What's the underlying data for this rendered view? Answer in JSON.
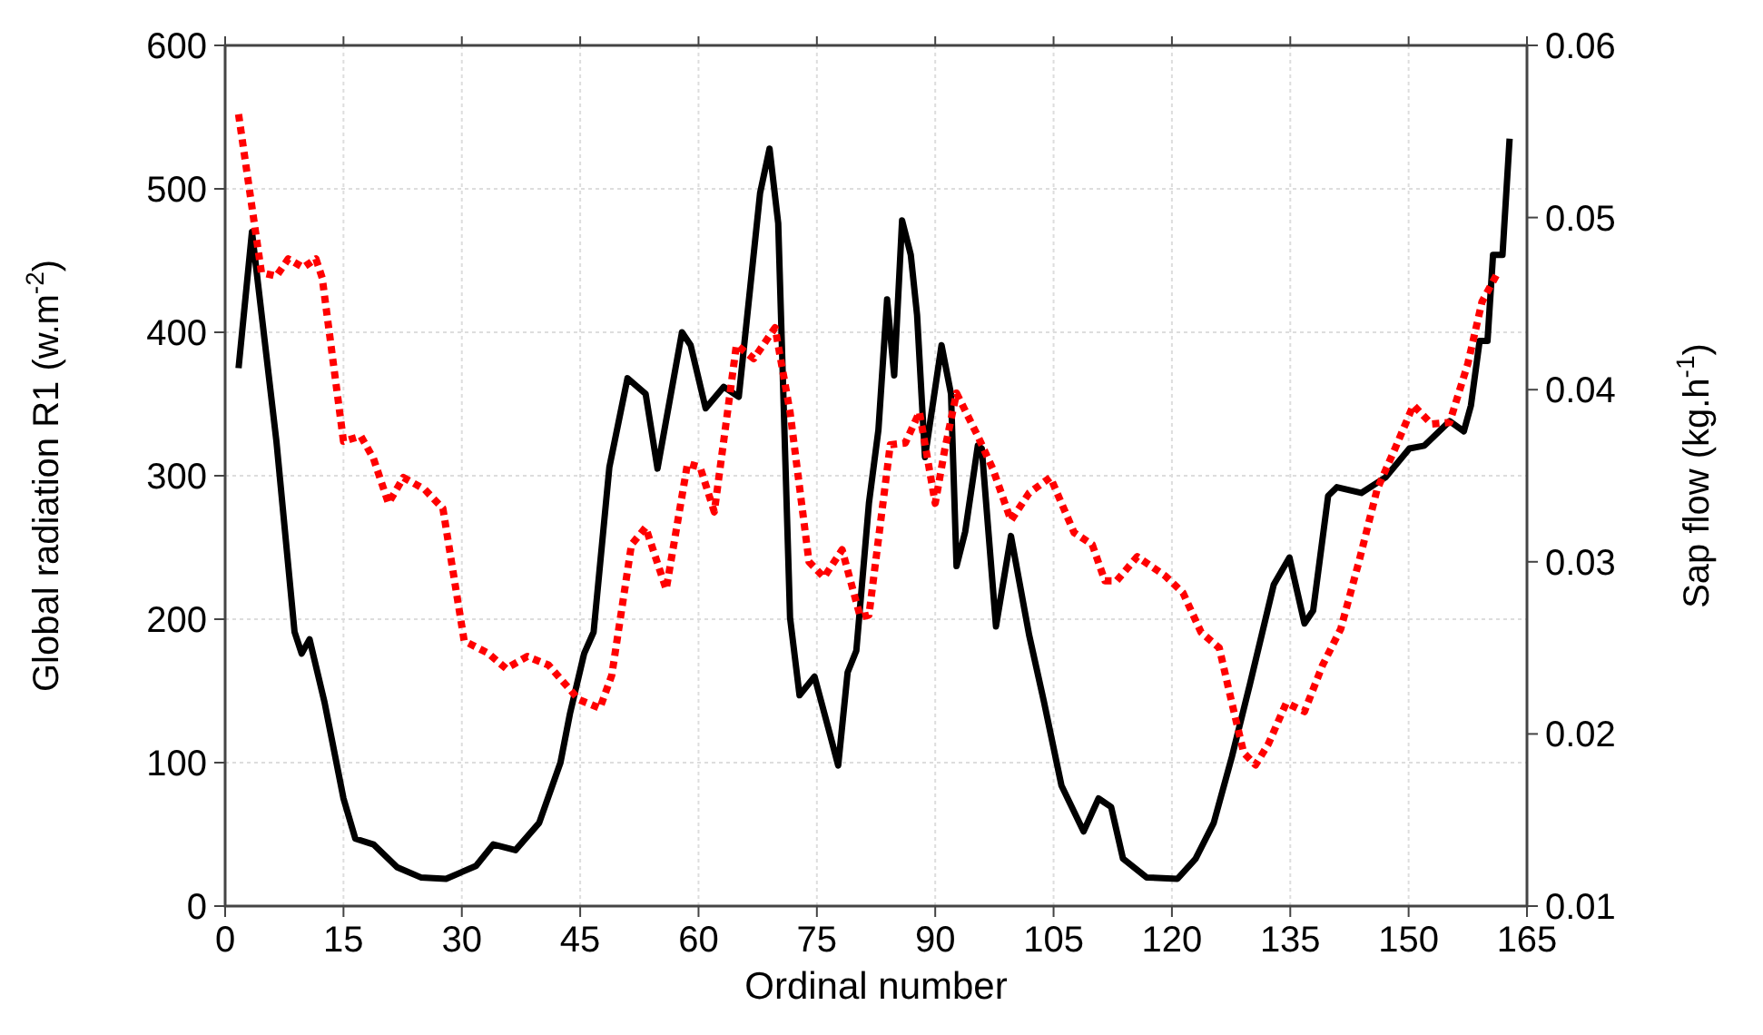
{
  "chart_data": {
    "type": "line",
    "xlabel": "Ordinal number",
    "ylabel": "Global radiation R1 (w.m$^{-2}$)",
    "y2label": "Sap flow (kg.h$^{-1}$)",
    "xlim": [
      0,
      165
    ],
    "xticks": [
      0,
      15,
      30,
      45,
      60,
      75,
      90,
      105,
      120,
      135,
      150,
      165
    ],
    "ylim": [
      0,
      600
    ],
    "yticks": [
      0,
      100,
      200,
      300,
      400,
      500,
      600
    ],
    "y2lim": [
      0.01,
      0.06
    ],
    "y2ticks": [
      0.01,
      0.02,
      0.03,
      0.04,
      0.05,
      0.06
    ],
    "grid": true,
    "series": [
      {
        "color": "#000000",
        "line_style": "solid",
        "x": [
          1.7,
          3.4,
          6.5,
          8.8,
          9.7,
          10.7,
          12.6,
          15,
          16.5,
          18.8,
          21.8,
          24.8,
          28,
          31.8,
          34,
          36.8,
          39.8,
          42.5,
          43.7,
          45.5,
          46.7,
          48.7,
          51,
          53.3,
          54.8,
          57.9,
          59,
          60.9,
          63.2,
          65.1,
          67.8,
          69,
          70.1,
          71.6,
          72.8,
          74.7,
          76.6,
          77.7,
          78.9,
          80,
          81.6,
          82.8,
          83.9,
          84.8,
          85.8,
          86.9,
          87.7,
          88.7,
          90.8,
          92,
          92.7,
          93.8,
          95.4,
          95.9,
          97.7,
          99.6,
          101.9,
          103.8,
          106,
          108.8,
          110.7,
          112.3,
          113.8,
          116.8,
          120.7,
          123,
          125.3,
          127.6,
          129.9,
          132.9,
          134.9,
          136.8,
          137.9,
          139.8,
          140.9,
          144,
          147.1,
          150.1,
          152,
          155.2,
          157,
          157.9,
          159,
          160,
          160.7,
          161.9,
          162.8
        ],
        "values": [
          375,
          470,
          324,
          191,
          176,
          186,
          142,
          75,
          47,
          43,
          27,
          20,
          19,
          28,
          43,
          39,
          58,
          100,
          134,
          176,
          191,
          306,
          368,
          357,
          305,
          400,
          391,
          347,
          362,
          355,
          497,
          528,
          476,
          201,
          147,
          160,
          121,
          98,
          163,
          178,
          281,
          332,
          423,
          370,
          478,
          454,
          412,
          313,
          391,
          357,
          237,
          261,
          321,
          319,
          195,
          258,
          189,
          142,
          84,
          52,
          75,
          69,
          33,
          20,
          19,
          33,
          58,
          104,
          155,
          224,
          243,
          197,
          206,
          286,
          292,
          288,
          299,
          319,
          321,
          338,
          331,
          349,
          394,
          394,
          454,
          454,
          535
        ]
      },
      {
        "color": "#ff0000",
        "line_style": "dotted",
        "axis": "y2",
        "x": [
          1.7,
          4.6,
          6.5,
          8,
          9.9,
          11.5,
          12.3,
          15,
          17.2,
          18.8,
          20.7,
          22.6,
          25.3,
          27.6,
          30.3,
          33.3,
          35.6,
          38.3,
          41,
          44.8,
          47.5,
          49,
          51.5,
          53.3,
          55.9,
          58.6,
          60.2,
          62,
          64.8,
          67,
          69.7,
          71.6,
          74,
          75.9,
          78.2,
          80.5,
          81.6,
          84.3,
          86.2,
          88,
          90,
          91.2,
          92.7,
          95.4,
          97.3,
          99.6,
          101.9,
          104.6,
          107.6,
          109.9,
          111.5,
          113,
          115.6,
          119.1,
          121.4,
          123.7,
          126,
          127.6,
          129.1,
          130.6,
          132.2,
          134.5,
          136.8,
          139.1,
          141.4,
          143.7,
          146,
          148.3,
          150.6,
          152.9,
          155.2,
          157.5,
          159.3,
          161.3
        ],
        "values": [
          0.056,
          0.0468,
          0.0466,
          0.0476,
          0.0471,
          0.0476,
          0.0465,
          0.037,
          0.0373,
          0.036,
          0.0334,
          0.0349,
          0.0342,
          0.0331,
          0.0254,
          0.0247,
          0.0238,
          0.0245,
          0.024,
          0.022,
          0.0215,
          0.0234,
          0.031,
          0.032,
          0.0284,
          0.0357,
          0.0355,
          0.0329,
          0.0426,
          0.0418,
          0.0436,
          0.0387,
          0.03,
          0.0291,
          0.0307,
          0.0268,
          0.0269,
          0.0368,
          0.0369,
          0.0387,
          0.0334,
          0.0365,
          0.0398,
          0.0373,
          0.0354,
          0.0324,
          0.034,
          0.0349,
          0.0317,
          0.031,
          0.0289,
          0.0289,
          0.0303,
          0.0292,
          0.0282,
          0.0259,
          0.025,
          0.0218,
          0.0189,
          0.0182,
          0.0194,
          0.0218,
          0.0213,
          0.024,
          0.0261,
          0.03,
          0.0342,
          0.0366,
          0.0391,
          0.038,
          0.0381,
          0.0415,
          0.0451,
          0.0468
        ]
      }
    ]
  }
}
